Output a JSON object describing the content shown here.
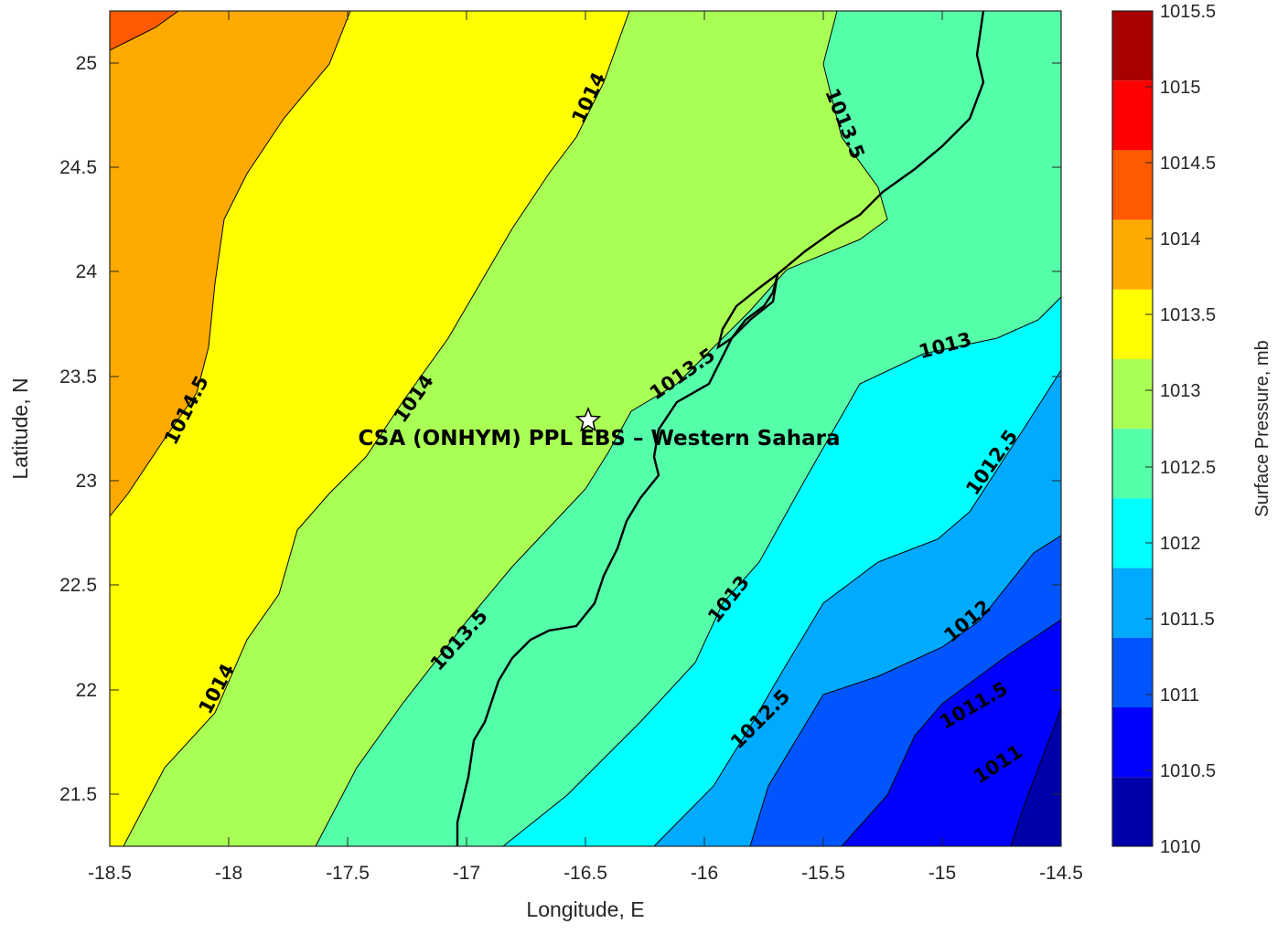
{
  "map": {
    "site_label": "CSA (ONHYM) PPL EBS  – Western Sahara",
    "marker_icon": "star-icon",
    "contour_labels": [
      {
        "text": "1014.5"
      },
      {
        "text": "1014"
      },
      {
        "text": "1014"
      },
      {
        "text": "1014"
      },
      {
        "text": "1013.5"
      },
      {
        "text": "1013.5"
      },
      {
        "text": "1013.5"
      },
      {
        "text": "1013"
      },
      {
        "text": "1013"
      },
      {
        "text": "1012.5"
      },
      {
        "text": "1012.5"
      },
      {
        "text": "1012"
      },
      {
        "text": "1011.5"
      },
      {
        "text": "1011"
      }
    ]
  },
  "axes": {
    "xlabel": "Longitude, E",
    "ylabel": "Latitude, N",
    "xlim": [
      -18.5,
      -14.5
    ],
    "ylim": [
      21.25,
      25.25
    ],
    "xticks": [
      "-18.5",
      "-18",
      "-17.5",
      "-17",
      "-16.5",
      "-16",
      "-15.5",
      "-15",
      "-14.5"
    ],
    "yticks": [
      "25",
      "24.5",
      "24",
      "23.5",
      "23",
      "22.5",
      "22",
      "21.5"
    ]
  },
  "colorbar": {
    "label": "Surface Pressure, mb",
    "ticks": [
      "1015.5",
      "1015",
      "1014.5",
      "1014",
      "1013.5",
      "1013",
      "1012.5",
      "1012",
      "1011.5",
      "1011",
      "1010.5",
      "1010"
    ],
    "colors": [
      "#a80000",
      "#ff0000",
      "#ff5a00",
      "#ffaa00",
      "#ffff00",
      "#aaff55",
      "#55ffaa",
      "#00ffff",
      "#00aaff",
      "#0055ff",
      "#0000ff",
      "#0000aa"
    ]
  },
  "colors": {
    "c1010": "#0000aa",
    "c1010_5": "#0000ff",
    "c1011": "#0055ff",
    "c1011_5": "#00aaff",
    "c1012": "#00ffff",
    "c1012_5": "#55ffaa",
    "c1013": "#aaff55",
    "c1013_5": "#ffff00",
    "c1014": "#ffaa00",
    "c1014_5": "#ff5a00",
    "c1015": "#ff0000"
  }
}
